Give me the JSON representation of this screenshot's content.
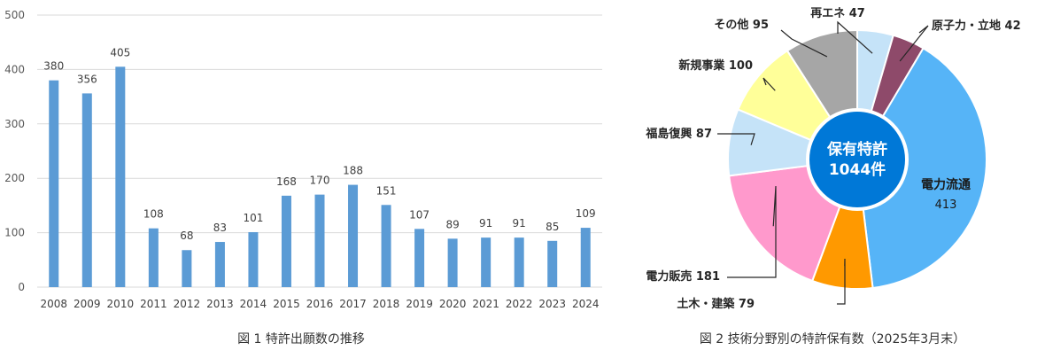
{
  "chart_data": [
    {
      "type": "bar",
      "title": "図 1  特許出願数の推移",
      "categories": [
        "2008",
        "2009",
        "2010",
        "2011",
        "2012",
        "2013",
        "2014",
        "2015",
        "2016",
        "2017",
        "2018",
        "2019",
        "2020",
        "2021",
        "2022",
        "2023",
        "2024"
      ],
      "values": [
        380,
        356,
        405,
        108,
        68,
        83,
        101,
        168,
        170,
        188,
        151,
        107,
        89,
        91,
        91,
        85,
        109
      ],
      "yticks": [
        "0",
        "100",
        "200",
        "300",
        "400",
        "500"
      ],
      "ylim": [
        0,
        500
      ],
      "grid": true,
      "bar_color": "#5b9bd5",
      "grid_color": "#d9d9d9"
    },
    {
      "type": "pie",
      "title": "図 2  技術分野別の特許保有数（2025年3月末）",
      "center_label": [
        "保有特許",
        "1044件"
      ],
      "center_color": "#0078d7",
      "slices": [
        {
          "label": "再エネ",
          "value": 47,
          "text": "再エネ 47",
          "color": "#c5e3f8"
        },
        {
          "label": "原子力・立地",
          "value": 42,
          "text": "原子力・立地 42",
          "color": "#8e4a6a"
        },
        {
          "label": "電力流通",
          "value": 413,
          "text": "電力流通",
          "value_text": "413",
          "color": "#56b4f7"
        },
        {
          "label": "土木・建築",
          "value": 79,
          "text": "土木・建築 79",
          "color": "#ff9900"
        },
        {
          "label": "電力販売",
          "value": 181,
          "text": "電力販売 181",
          "color": "#ff99cc"
        },
        {
          "label": "福島復興",
          "value": 87,
          "text": "福島復興 87",
          "color": "#c5e3f8"
        },
        {
          "label": "新規事業",
          "value": 100,
          "text": "新規事業 100",
          "color": "#ffff99"
        },
        {
          "label": "その他",
          "value": 95,
          "text": "その他 95",
          "color": "#a6a6a6"
        }
      ]
    }
  ]
}
